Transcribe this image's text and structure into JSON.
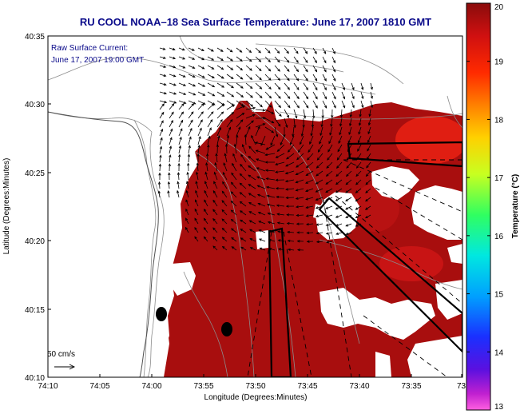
{
  "title": "RU COOL   NOAA–18  Sea Surface Temperature:  June 17, 2007 1810 GMT",
  "current_label_line1": "Raw Surface Current:",
  "current_label_line2": "June 17, 2007 19:00 GMT",
  "scale_label": "50 cm/s",
  "x_axis_label": "Longitude (Degrees:Minutes)",
  "y_axis_label": "Latitude (Degrees:Minutes)",
  "x_ticks": [
    "74:10",
    "74:05",
    "74:00",
    "73:55",
    "73:50",
    "73:45",
    "73:40",
    "73:35",
    "73:3"
  ],
  "y_ticks": [
    "40:35",
    "40:30",
    "40:25",
    "40:20",
    "40:15",
    "40:10"
  ],
  "colorbar": {
    "label": "Temperature (°C)",
    "ticks": [
      "20",
      "19",
      "18",
      "17",
      "16",
      "15",
      "14",
      "13"
    ],
    "min": 13,
    "max": 20
  },
  "colors": {
    "title": "#0a0a8a",
    "sst_dominant": "#a80e0e",
    "land": "#ffffff",
    "vector": "#000000"
  }
}
